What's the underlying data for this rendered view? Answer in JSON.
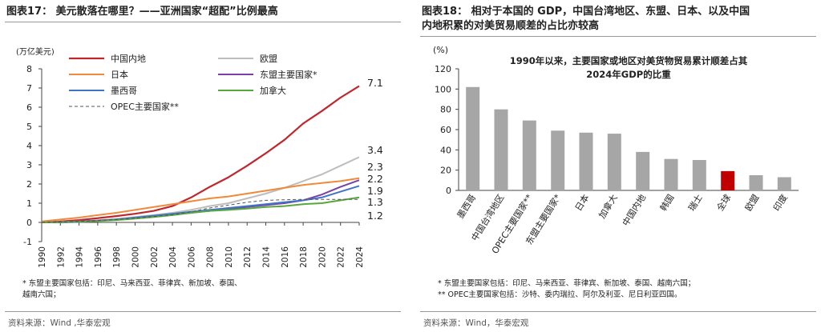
{
  "left_panel": {
    "title": "图表17：  美元散落在哪里？——亚洲国家“超配”比例最高",
    "unit_label": "(万亿美元)",
    "note_line1": "*  东盟主要国家包括：印尼、马来西亚、菲律宾、新加坡、泰国、",
    "note_line2": "越南六国；",
    "source": "资料来源：Wind ,华泰宏观"
  },
  "right_panel": {
    "title_line1": "图表18：  相对于本国的 GDP，中国台湾地区、东盟、日本、以及中国",
    "title_line2": "内地积累的对美贸易顺差的占比亦较高",
    "unit_label": "(%)",
    "note_line1": "*  东盟主要国家包括：印尼、马来西亚、菲律宾、新加坡、泰国、越南六国；",
    "note_line2": "** OPEC主要国家包括：沙特、委内瑞拉、阿尔及利亚、尼日利亚四国。",
    "source": "资料来源：Wind，华泰宏观"
  },
  "chart_data": [
    {
      "type": "line",
      "title": "",
      "ylabel": "(万亿美元)",
      "ylim": [
        -1,
        8
      ],
      "yticks": [
        -1,
        0,
        1,
        2,
        3,
        4,
        5,
        6,
        7,
        8
      ],
      "x": [
        1990,
        1992,
        1994,
        1996,
        1998,
        2000,
        2002,
        2004,
        2006,
        2008,
        2010,
        2012,
        2014,
        2016,
        2018,
        2020,
        2022,
        2024
      ],
      "series": [
        {
          "name": "中国内地",
          "color": "#c0272d",
          "dash": "",
          "width": 2.2,
          "end_label": "7.1",
          "values": [
            0.0,
            0.05,
            0.12,
            0.22,
            0.33,
            0.45,
            0.6,
            0.85,
            1.3,
            1.85,
            2.35,
            2.95,
            3.6,
            4.3,
            5.15,
            5.8,
            6.5,
            7.1
          ]
        },
        {
          "name": "欧盟",
          "color": "#bdbdbd",
          "dash": "",
          "width": 2,
          "end_label": "3.4",
          "values": [
            0.0,
            0.02,
            0.05,
            0.1,
            0.18,
            0.28,
            0.38,
            0.5,
            0.65,
            0.85,
            1.0,
            1.25,
            1.5,
            1.8,
            2.15,
            2.5,
            2.95,
            3.4
          ]
        },
        {
          "name": "日本",
          "color": "#f08a3a",
          "dash": "",
          "width": 2,
          "end_label": "2.3",
          "values": [
            0.05,
            0.15,
            0.25,
            0.38,
            0.5,
            0.65,
            0.8,
            0.95,
            1.1,
            1.25,
            1.35,
            1.5,
            1.65,
            1.8,
            1.95,
            2.05,
            2.15,
            2.3
          ]
        },
        {
          "name": "东盟主要国家*",
          "color": "#7a3fa8",
          "dash": "",
          "width": 2,
          "end_label": "2.2",
          "values": [
            0.0,
            0.02,
            0.05,
            0.1,
            0.15,
            0.22,
            0.3,
            0.4,
            0.5,
            0.6,
            0.7,
            0.8,
            0.9,
            1.0,
            1.15,
            1.45,
            1.85,
            2.2
          ]
        },
        {
          "name": "墨西哥",
          "color": "#3f74c8",
          "dash": "",
          "width": 2,
          "end_label": "1.9",
          "values": [
            0.0,
            0.0,
            0.02,
            0.08,
            0.15,
            0.25,
            0.35,
            0.45,
            0.55,
            0.65,
            0.75,
            0.85,
            0.95,
            1.05,
            1.15,
            1.3,
            1.6,
            1.9
          ]
        },
        {
          "name": "加拿大",
          "color": "#56a83a",
          "dash": "",
          "width": 2,
          "end_label": "1.3",
          "values": [
            0.0,
            0.01,
            0.03,
            0.07,
            0.12,
            0.2,
            0.28,
            0.38,
            0.5,
            0.6,
            0.65,
            0.72,
            0.8,
            0.85,
            0.95,
            1.0,
            1.15,
            1.3
          ]
        },
        {
          "name": "OPEC主要国家**",
          "color": "#555555",
          "dash": "4,3",
          "width": 1,
          "end_label": "1.2",
          "values": [
            0.0,
            0.02,
            0.05,
            0.1,
            0.15,
            0.22,
            0.3,
            0.4,
            0.55,
            0.75,
            0.9,
            1.05,
            1.15,
            1.18,
            1.2,
            1.2,
            1.2,
            1.2
          ]
        }
      ],
      "end_label_colors": {
        "7.1": "#c0272d",
        "3.4": "#222222",
        "2.3": "#f08a3a",
        "2.2": "#7a3fa8",
        "1.9": "#3f74c8",
        "1.3": "#56a83a",
        "1.2": "#222222"
      },
      "legend": "top-left"
    },
    {
      "type": "bar",
      "title": "1990年以来，主要国家或地区对美货物贸易累计顺差占其 2024年GDP的比重",
      "title_line1": "1990年以来，主要国家或地区对美货物贸易累计顺差占其",
      "title_line2": "2024年GDP的比重",
      "ylabel": "(%)",
      "ylim": [
        0,
        120
      ],
      "yticks": [
        0,
        20,
        40,
        60,
        80,
        100,
        120
      ],
      "categories": [
        "墨西哥",
        "中国台湾地区",
        "OPEC主要国家**",
        "东盟主要国家*",
        "日本",
        "加拿大",
        "中国内地",
        "韩国",
        "瑞士",
        "全球",
        "欧盟",
        "印度"
      ],
      "values": [
        102,
        80,
        69,
        59,
        57,
        56,
        38,
        31,
        30,
        19,
        15,
        13
      ],
      "bar_color": "#a6a6a6",
      "highlight": {
        "category": "全球",
        "color": "#c00000"
      }
    }
  ]
}
